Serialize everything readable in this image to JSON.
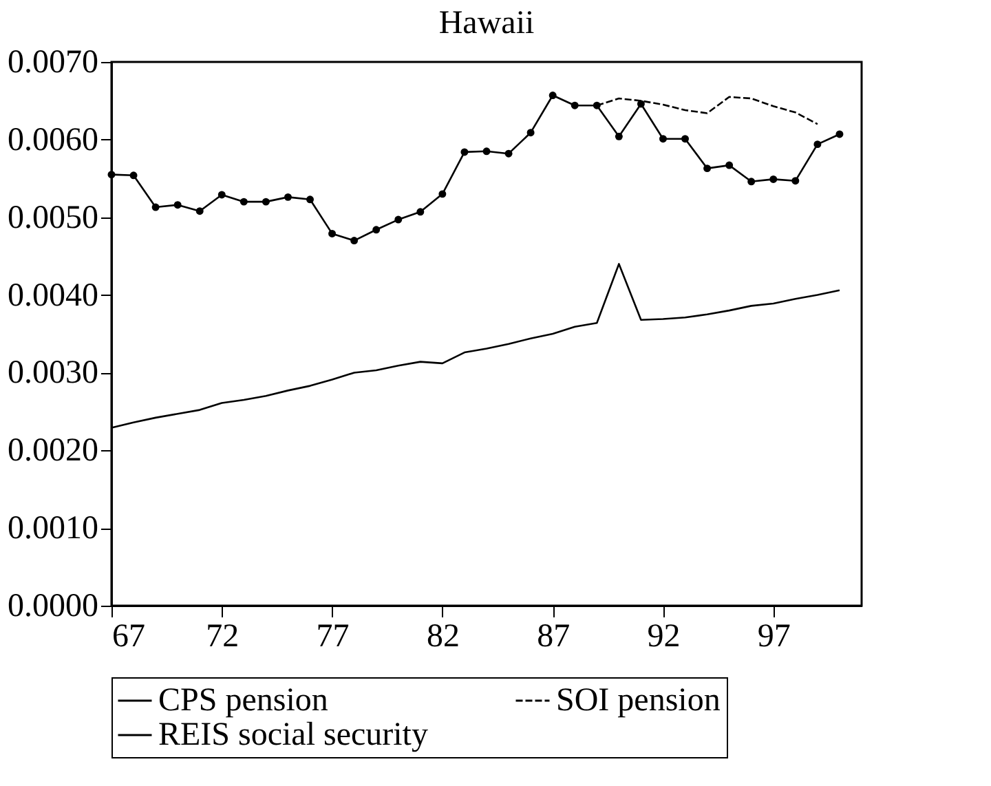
{
  "chart_data": {
    "type": "line",
    "title": "Hawaii",
    "x": [
      67,
      68,
      69,
      70,
      71,
      72,
      73,
      74,
      75,
      76,
      77,
      78,
      79,
      80,
      81,
      82,
      83,
      84,
      85,
      86,
      87,
      88,
      89,
      90,
      91,
      92,
      93,
      94,
      95,
      96,
      97,
      98,
      99,
      100
    ],
    "series": [
      {
        "name": "CPS pension",
        "color": "#000000",
        "marker": "circle",
        "line_style": "solid",
        "values": [
          0.00555,
          0.00554,
          0.00513,
          0.00516,
          0.00508,
          0.00529,
          0.0052,
          0.0052,
          0.00526,
          0.00523,
          0.00479,
          0.0047,
          0.00484,
          0.00497,
          0.00507,
          0.0053,
          0.00584,
          0.00585,
          0.00582,
          0.00609,
          0.00657,
          0.00644,
          0.00644,
          0.00604,
          0.00646,
          0.00601,
          0.00601,
          0.00563,
          0.00567,
          0.00546,
          0.00549,
          0.00547,
          0.00594,
          0.00607
        ]
      },
      {
        "name": "SOI pension",
        "color": "#000000",
        "marker": "none",
        "line_style": "dashed",
        "values": [
          null,
          null,
          null,
          null,
          null,
          null,
          null,
          null,
          null,
          null,
          null,
          null,
          null,
          null,
          null,
          null,
          null,
          null,
          null,
          null,
          null,
          null,
          0.00644,
          0.00653,
          0.0065,
          0.00645,
          0.00638,
          0.00634,
          0.00655,
          0.00653,
          0.00643,
          0.00635,
          0.0062,
          null
        ]
      },
      {
        "name": "REIS social security",
        "color": "#000000",
        "marker": "none",
        "line_style": "solid",
        "values": [
          0.00229,
          0.00236,
          0.00242,
          0.00247,
          0.00252,
          0.00261,
          0.00265,
          0.0027,
          0.00277,
          0.00283,
          0.00291,
          0.003,
          0.00303,
          0.00309,
          0.00314,
          0.00312,
          0.00326,
          0.00331,
          0.00337,
          0.00344,
          0.0035,
          0.00359,
          0.00364,
          0.0044,
          0.00368,
          0.00369,
          0.00371,
          0.00375,
          0.0038,
          0.00386,
          0.00389,
          0.00395,
          0.004,
          0.00406
        ]
      }
    ],
    "xlim": [
      67,
      101
    ],
    "xticks": [
      67,
      72,
      77,
      82,
      87,
      92,
      97
    ],
    "ylim": [
      0,
      0.007
    ],
    "yticks": [
      {
        "value": 0,
        "label": "0.0000"
      },
      {
        "value": 0.001,
        "label": "0.0010"
      },
      {
        "value": 0.002,
        "label": "0.0020"
      },
      {
        "value": 0.003,
        "label": "0.0030"
      },
      {
        "value": 0.004,
        "label": "0.0040"
      },
      {
        "value": 0.005,
        "label": "0.0050"
      },
      {
        "value": 0.006,
        "label": "0.0060"
      },
      {
        "value": 0.007,
        "label": "0.0070"
      }
    ],
    "grid": false,
    "legend": "bottom"
  }
}
